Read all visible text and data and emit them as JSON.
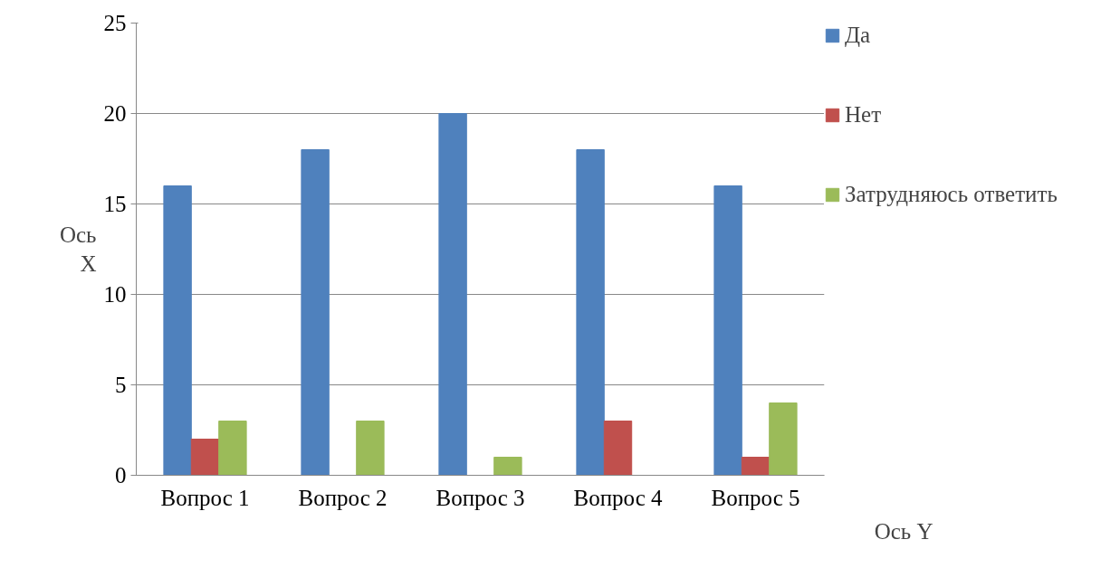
{
  "chart_data": {
    "type": "bar",
    "categories": [
      "Вопрос 1",
      "Вопрос 2",
      "Вопрос 3",
      "Вопрос 4",
      "Вопрос 5"
    ],
    "series": [
      {
        "name": "Да",
        "color": "#4f81bd",
        "values": [
          16,
          18,
          20,
          18,
          16
        ]
      },
      {
        "name": "Нет",
        "color": "#c0504d",
        "values": [
          2,
          0,
          0,
          3,
          1
        ]
      },
      {
        "name": "Затрудняюсь ответить",
        "color": "#9bbb59",
        "values": [
          3,
          3,
          1,
          0,
          4
        ]
      }
    ],
    "xlabel": "Ось Y",
    "ylabel": "Ось X",
    "ylim": [
      0,
      25
    ],
    "yticks": [
      0,
      5,
      10,
      15,
      20,
      25
    ],
    "grid": "y",
    "legend": "right"
  }
}
